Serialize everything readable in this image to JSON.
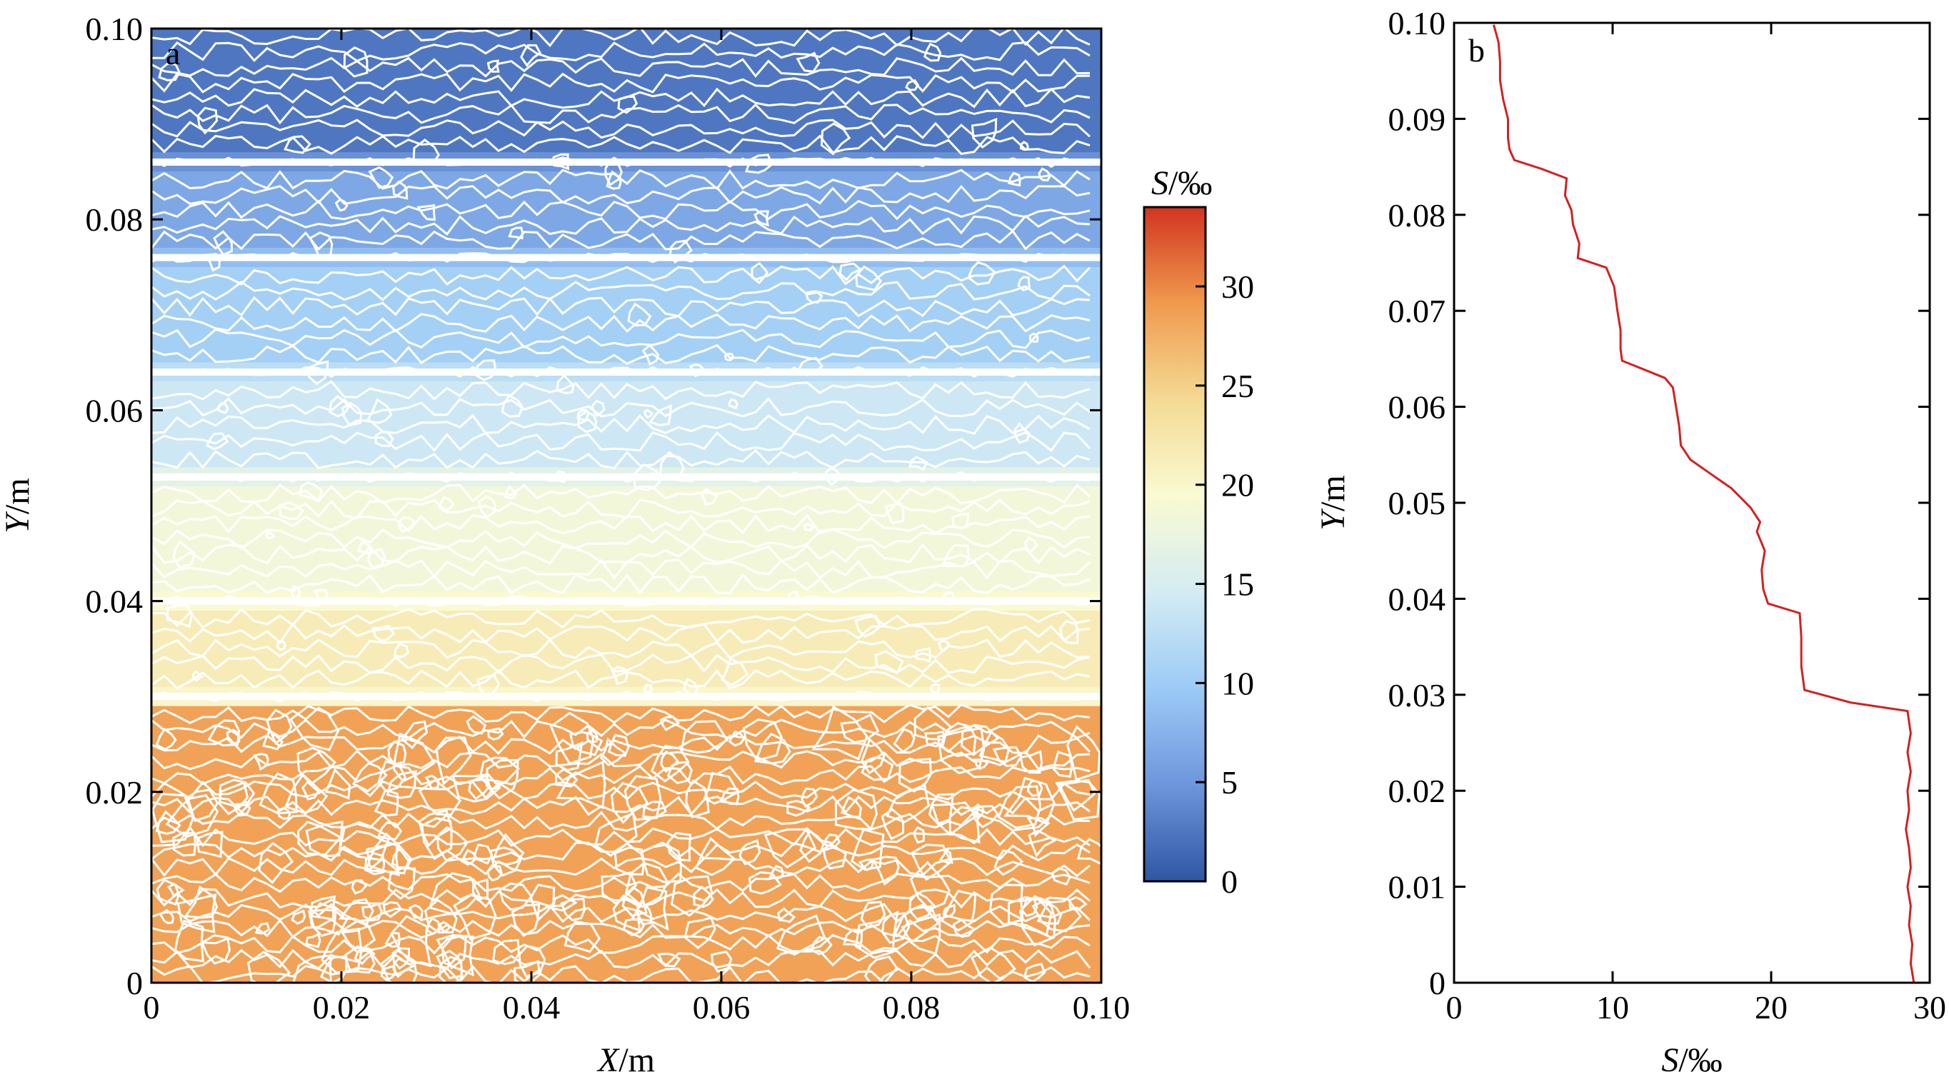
{
  "chart_data": [
    {
      "type": "heatmap",
      "panel_label": "a",
      "xlabel": "X",
      "xlabel_unit": "/m",
      "ylabel": "Y",
      "ylabel_unit": "/m",
      "xlim": [
        0,
        0.1
      ],
      "ylim": [
        0,
        0.1
      ],
      "xticks": [
        0,
        0.02,
        0.04,
        0.06,
        0.08,
        0.1
      ],
      "xtick_labels": [
        "0",
        "0.02",
        "0.04",
        "0.06",
        "0.08",
        "0.10"
      ],
      "yticks": [
        0,
        0.02,
        0.04,
        0.06,
        0.08,
        0.1
      ],
      "ytick_labels": [
        "0",
        "0.02",
        "0.04",
        "0.06",
        "0.08",
        "0.10"
      ],
      "layers": [
        {
          "y0": 0.0,
          "y1": 0.029,
          "S": 28.5
        },
        {
          "y0": 0.029,
          "y1": 0.031,
          "S": 20
        },
        {
          "y0": 0.031,
          "y1": 0.039,
          "S": 21.5
        },
        {
          "y0": 0.039,
          "y1": 0.041,
          "S": 19.5
        },
        {
          "y0": 0.041,
          "y1": 0.052,
          "S": 18.5
        },
        {
          "y0": 0.052,
          "y1": 0.054,
          "S": 16.5
        },
        {
          "y0": 0.054,
          "y1": 0.063,
          "S": 14
        },
        {
          "y0": 0.063,
          "y1": 0.065,
          "S": 12.5
        },
        {
          "y0": 0.065,
          "y1": 0.075,
          "S": 10.5
        },
        {
          "y0": 0.075,
          "y1": 0.077,
          "S": 8.5
        },
        {
          "y0": 0.077,
          "y1": 0.085,
          "S": 6.5
        },
        {
          "y0": 0.085,
          "y1": 0.087,
          "S": 4.5
        },
        {
          "y0": 0.087,
          "y1": 0.1,
          "S": 2.5
        }
      ],
      "colorbar": {
        "title": "S",
        "title_unit": "/‰",
        "range": [
          0,
          34
        ],
        "ticks": [
          0,
          5,
          10,
          15,
          20,
          25,
          30
        ],
        "tick_labels": [
          "0",
          "5",
          "10",
          "15",
          "20",
          "25",
          "30"
        ],
        "colors": [
          "#2e56a4",
          "#6e96dc",
          "#9ccaf6",
          "#d4ecf4",
          "#fafad2",
          "#f4da94",
          "#f09a4e",
          "#d23420"
        ]
      },
      "contour_color": "#ffffff"
    },
    {
      "type": "line",
      "panel_label": "b",
      "xlabel": "S",
      "xlabel_unit": "/‰",
      "ylabel": "Y",
      "ylabel_unit": "/m",
      "xlim": [
        0,
        30
      ],
      "ylim": [
        0,
        0.1
      ],
      "xticks": [
        0,
        10,
        20,
        30
      ],
      "xtick_labels": [
        "0",
        "10",
        "20",
        "30"
      ],
      "yticks": [
        0,
        0.01,
        0.02,
        0.03,
        0.04,
        0.05,
        0.06,
        0.07,
        0.08,
        0.09,
        0.1
      ],
      "ytick_labels": [
        "0",
        "0.01",
        "0.02",
        "0.03",
        "0.04",
        "0.05",
        "0.06",
        "0.07",
        "0.08",
        "0.09",
        "0.10"
      ],
      "series": [
        {
          "color": "#d42020",
          "points": [
            [
              29.0,
              0.0
            ],
            [
              28.8,
              0.002
            ],
            [
              28.9,
              0.004
            ],
            [
              28.7,
              0.006
            ],
            [
              28.8,
              0.008
            ],
            [
              28.6,
              0.01
            ],
            [
              28.8,
              0.012
            ],
            [
              28.7,
              0.014
            ],
            [
              28.5,
              0.016
            ],
            [
              28.7,
              0.018
            ],
            [
              28.6,
              0.02
            ],
            [
              28.8,
              0.022
            ],
            [
              28.6,
              0.024
            ],
            [
              28.8,
              0.026
            ],
            [
              28.6,
              0.0283
            ],
            [
              25.0,
              0.0292
            ],
            [
              22.1,
              0.0305
            ],
            [
              21.9,
              0.033
            ],
            [
              21.9,
              0.036
            ],
            [
              21.8,
              0.0385
            ],
            [
              19.8,
              0.0395
            ],
            [
              19.5,
              0.041
            ],
            [
              19.4,
              0.043
            ],
            [
              19.6,
              0.045
            ],
            [
              19.1,
              0.047
            ],
            [
              19.3,
              0.048
            ],
            [
              18.7,
              0.0495
            ],
            [
              17.5,
              0.0515
            ],
            [
              16.2,
              0.053
            ],
            [
              14.9,
              0.0545
            ],
            [
              14.3,
              0.056
            ],
            [
              14.2,
              0.058
            ],
            [
              14.0,
              0.06
            ],
            [
              13.8,
              0.062
            ],
            [
              13.3,
              0.063
            ],
            [
              11.8,
              0.064
            ],
            [
              10.6,
              0.0648
            ],
            [
              10.5,
              0.066
            ],
            [
              10.5,
              0.068
            ],
            [
              10.3,
              0.07
            ],
            [
              10.1,
              0.0725
            ],
            [
              9.6,
              0.0745
            ],
            [
              7.8,
              0.0755
            ],
            [
              7.9,
              0.077
            ],
            [
              7.5,
              0.079
            ],
            [
              7.4,
              0.0805
            ],
            [
              7.0,
              0.082
            ],
            [
              7.1,
              0.0838
            ],
            [
              5.5,
              0.0848
            ],
            [
              3.8,
              0.0857
            ],
            [
              3.5,
              0.0868
            ],
            [
              3.4,
              0.088
            ],
            [
              3.4,
              0.09
            ],
            [
              3.1,
              0.092
            ],
            [
              2.9,
              0.094
            ],
            [
              2.9,
              0.096
            ],
            [
              2.8,
              0.098
            ],
            [
              2.5,
              0.0998
            ]
          ]
        }
      ]
    }
  ]
}
